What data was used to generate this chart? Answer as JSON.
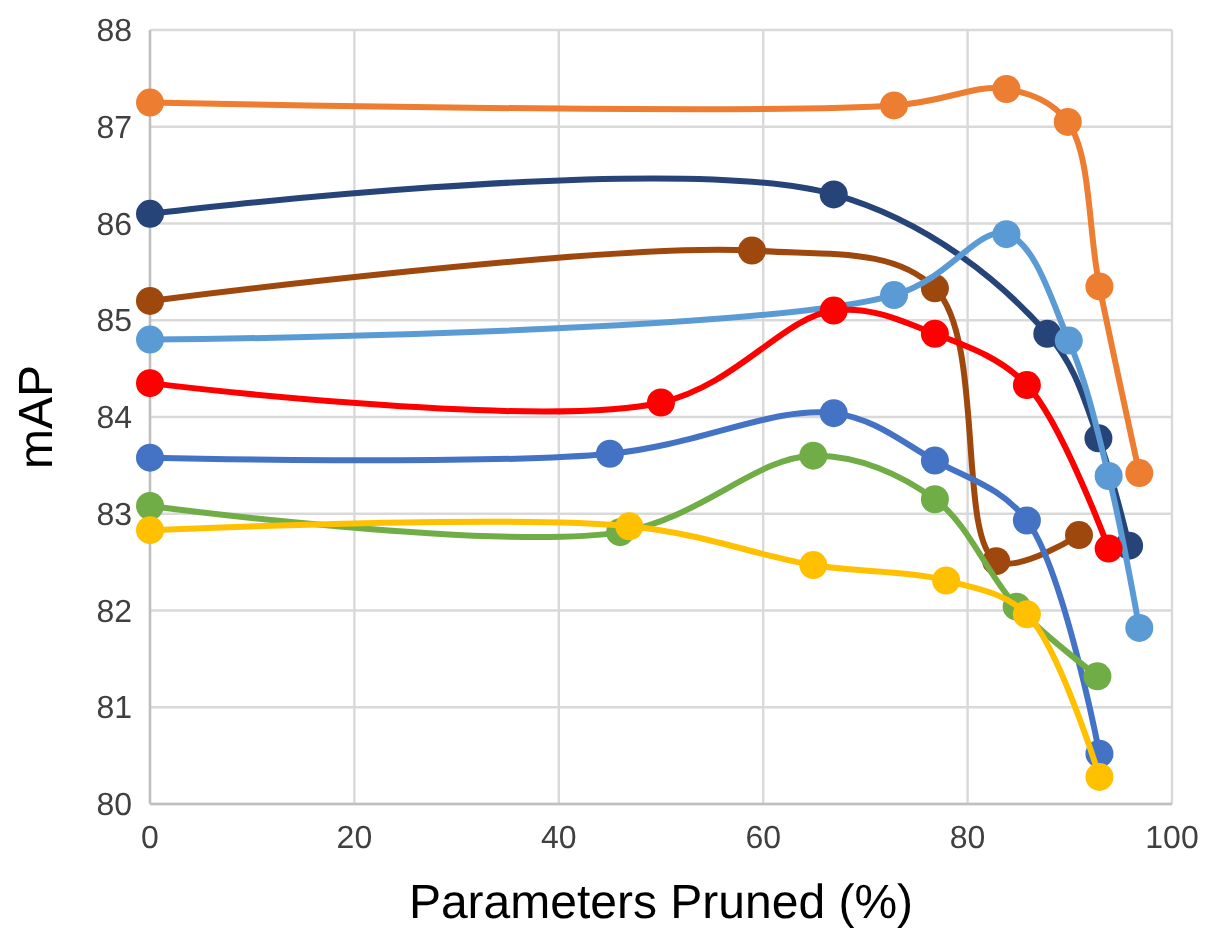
{
  "chart_data": {
    "type": "line",
    "xlabel": "Parameters Pruned (%)",
    "ylabel": "mAP",
    "xlim": [
      0,
      100
    ],
    "ylim": [
      80,
      88
    ],
    "xticks": [
      0,
      20,
      40,
      60,
      80,
      100
    ],
    "yticks": [
      80,
      81,
      82,
      83,
      84,
      85,
      86,
      87,
      88
    ],
    "grid": true,
    "marker": "circle",
    "line_style": "solid",
    "series": [
      {
        "color": "#ed7d31",
        "x": [
          0,
          72.8,
          83.8,
          89.8,
          92.9,
          96.8
        ],
        "values": [
          87.25,
          87.22,
          87.39,
          87.05,
          85.35,
          83.42
        ]
      },
      {
        "color": "#264478",
        "x": [
          0,
          66.9,
          87.8,
          92.8,
          95.8
        ],
        "values": [
          86.1,
          86.3,
          84.86,
          83.78,
          82.67
        ]
      },
      {
        "color": "#9e480e",
        "x": [
          0,
          58.9,
          76.8,
          82.8,
          90.9
        ],
        "values": [
          85.2,
          85.72,
          85.33,
          82.51,
          82.78
        ]
      },
      {
        "color": "#5b9bd5",
        "x": [
          0,
          72.8,
          83.8,
          89.9,
          93.8,
          96.8
        ],
        "values": [
          84.8,
          85.26,
          85.89,
          84.79,
          83.39,
          81.82
        ]
      },
      {
        "color": "#ff0000",
        "x": [
          0,
          50,
          66.9,
          76.8,
          85.8,
          93.8
        ],
        "values": [
          84.35,
          84.15,
          85.1,
          84.86,
          84.33,
          82.64
        ]
      },
      {
        "color": "#4472c4",
        "x": [
          0,
          45,
          66.9,
          76.8,
          85.8,
          92.9
        ],
        "values": [
          83.58,
          83.62,
          84.04,
          83.55,
          82.93,
          80.52
        ]
      },
      {
        "color": "#70ad47",
        "x": [
          0,
          46,
          64.9,
          76.8,
          84.8,
          92.7
        ],
        "values": [
          83.08,
          82.81,
          83.6,
          83.15,
          82.04,
          81.32
        ]
      },
      {
        "color": "#ffc000",
        "x": [
          0,
          46.9,
          64.9,
          77.9,
          85.8,
          92.9
        ],
        "values": [
          82.83,
          82.87,
          82.47,
          82.31,
          81.96,
          80.28
        ]
      }
    ]
  }
}
